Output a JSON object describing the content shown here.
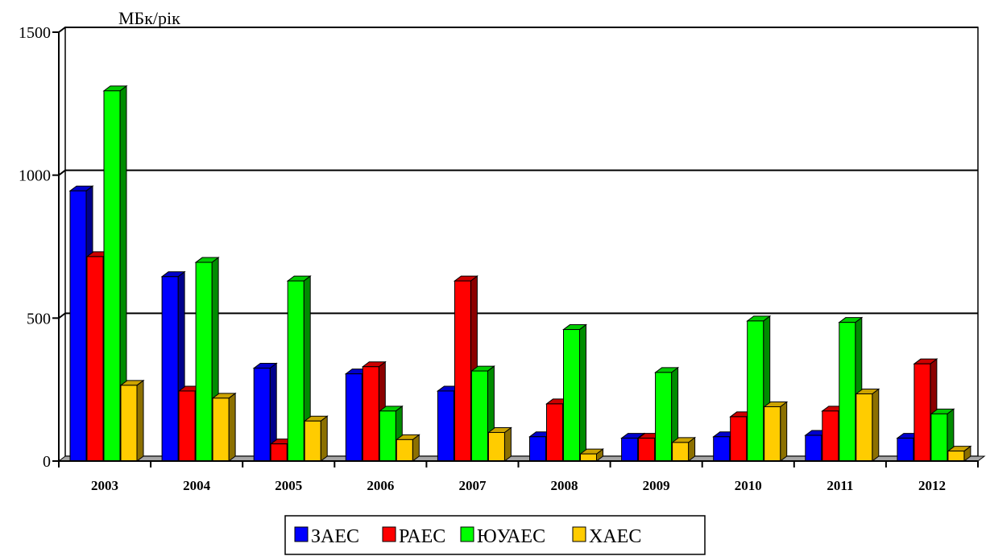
{
  "chart_data": {
    "type": "bar",
    "ylabel": "МБк/рік",
    "ylim": [
      0,
      1500
    ],
    "yticks": [
      0,
      500,
      1000,
      1500
    ],
    "grid": true,
    "legend_position": "bottom",
    "categories": [
      "2003",
      "2004",
      "2005",
      "2006",
      "2007",
      "2008",
      "2009",
      "2010",
      "2011",
      "2012"
    ],
    "series": [
      {
        "name": "ЗАЕС",
        "color": "#0000ff",
        "values": [
          945,
          645,
          325,
          305,
          245,
          85,
          80,
          85,
          90,
          80
        ]
      },
      {
        "name": "РАЕС",
        "color": "#ff0000",
        "values": [
          715,
          245,
          60,
          330,
          630,
          200,
          80,
          155,
          175,
          340
        ]
      },
      {
        "name": "ЮУАЕС",
        "color": "#00ff00",
        "values": [
          1295,
          695,
          630,
          175,
          315,
          460,
          310,
          490,
          485,
          165
        ]
      },
      {
        "name": "ХАЕС",
        "color": "#ffcc00",
        "values": [
          265,
          220,
          140,
          75,
          100,
          25,
          65,
          190,
          235,
          35
        ]
      }
    ]
  }
}
